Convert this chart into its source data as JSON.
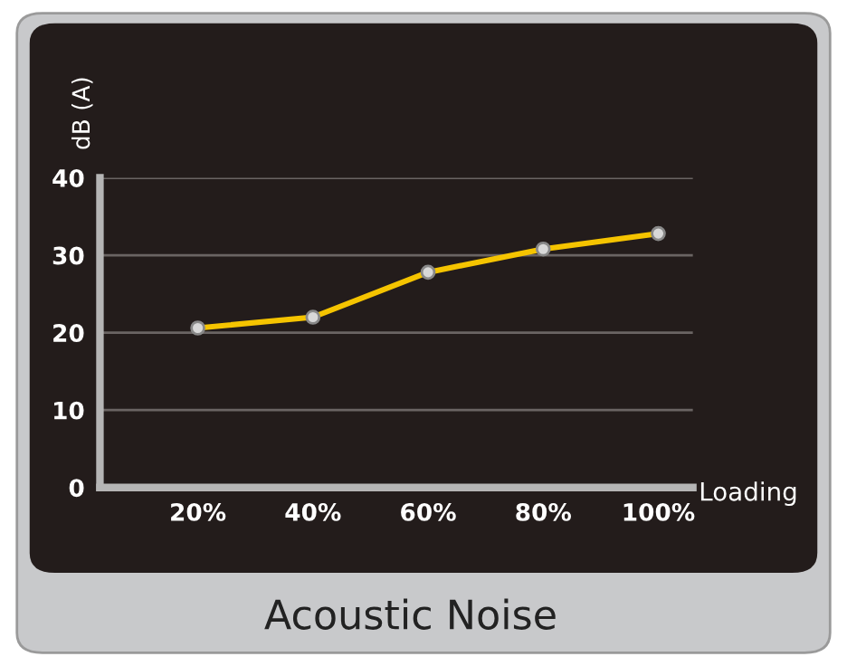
{
  "chart_data": {
    "type": "line",
    "title": "Acoustic Noise",
    "xlabel": "Loading",
    "ylabel": "dB (A)",
    "categories": [
      "20%",
      "40%",
      "60%",
      "80%",
      "100%"
    ],
    "series": [
      {
        "color": "#f5c400",
        "values": [
          20.6,
          22.0,
          27.8,
          30.8,
          32.8
        ]
      }
    ],
    "ylim": [
      0,
      40
    ],
    "yticks": [
      0,
      10,
      20,
      30,
      40
    ],
    "grid": "y",
    "marker": "circle",
    "line_style": "solid",
    "legend": false
  }
}
